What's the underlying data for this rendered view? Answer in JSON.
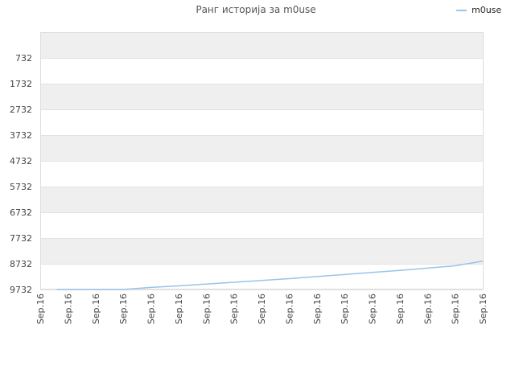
{
  "chart_data": {
    "type": "line",
    "title": "Ранг историја за m0use",
    "xlabel": "",
    "ylabel": "",
    "y_inverted": true,
    "grid": true,
    "grid_style": "alternating horizontal bands",
    "ylim": [
      -268,
      9732
    ],
    "y_ticks": [
      732,
      1732,
      2732,
      3732,
      4732,
      5732,
      6732,
      7732,
      8732,
      9732
    ],
    "categories": [
      "Sep.16",
      "Sep.16",
      "Sep.16",
      "Sep.16",
      "Sep.16",
      "Sep.16",
      "Sep.16",
      "Sep.16",
      "Sep.16",
      "Sep.16",
      "Sep.16",
      "Sep.16",
      "Sep.16",
      "Sep.16",
      "Sep.16",
      "Sep.16",
      "Sep.16"
    ],
    "legend": {
      "position": "top-right",
      "entries": [
        "m0use"
      ]
    },
    "series": [
      {
        "name": "m0use",
        "color": "#99c4ea",
        "values": [
          null,
          9732,
          9732,
          9732,
          9650,
          9590,
          9520,
          9450,
          9380,
          9310,
          9230,
          9150,
          9070,
          8990,
          8900,
          8810,
          8630
        ]
      }
    ]
  }
}
